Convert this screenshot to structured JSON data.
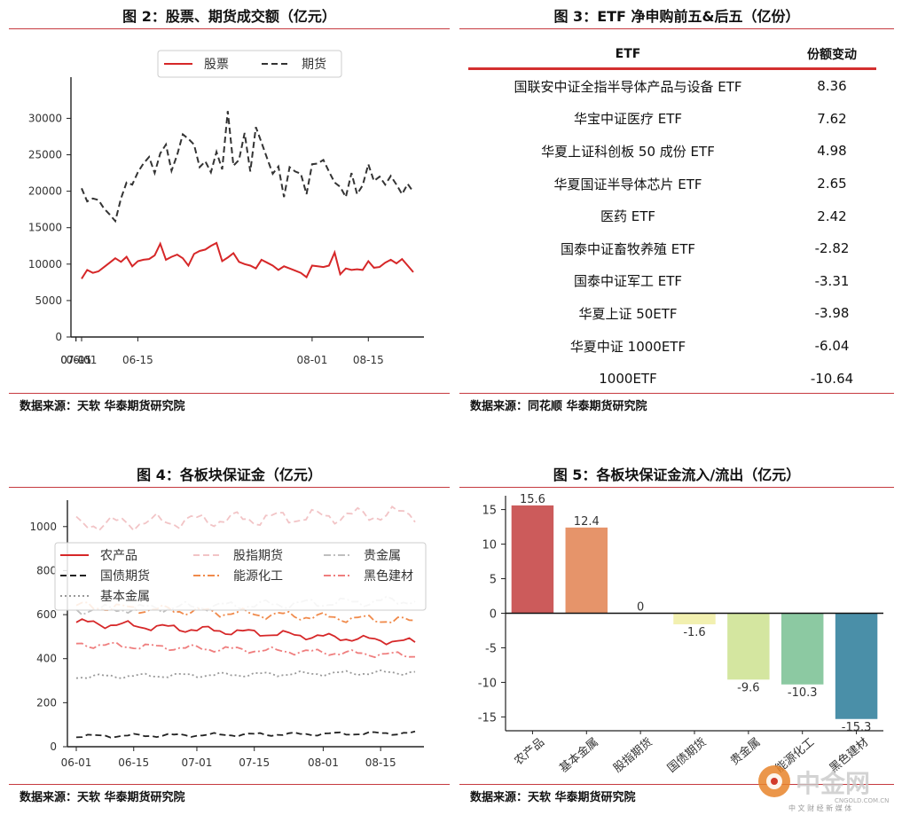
{
  "fig2": {
    "title": "图 2：股票、期货成交额（亿元）",
    "source": "数据来源：天软 华泰期货研究院",
    "legend": [
      "股票",
      "期货"
    ]
  },
  "fig3": {
    "title": "图 3：ETF 净申购前五&后五（亿份）",
    "source": "数据来源：同花顺 华泰期货研究院",
    "header": [
      "ETF",
      "份额变动"
    ],
    "rows": [
      {
        "name": "国联安中证全指半导体产品与设备 ETF",
        "value": "8.36"
      },
      {
        "name": "华宝中证医疗 ETF",
        "value": "7.62"
      },
      {
        "name": "华夏上证科创板 50 成份 ETF",
        "value": "4.98"
      },
      {
        "name": "华夏国证半导体芯片 ETF",
        "value": "2.65"
      },
      {
        "name": "医药 ETF",
        "value": "2.42"
      },
      {
        "name": "国泰中证畜牧养殖 ETF",
        "value": "-2.82"
      },
      {
        "name": "国泰中证军工 ETF",
        "value": "-3.31"
      },
      {
        "name": "华夏上证 50ETF",
        "value": "-3.98"
      },
      {
        "name": "华夏中证 1000ETF",
        "value": "-6.04"
      },
      {
        "name": "1000ETF",
        "value": "-10.64"
      }
    ]
  },
  "fig4": {
    "title": "图 4：各板块保证金（亿元）",
    "source": "数据来源：天软 华泰期货研究院"
  },
  "fig5": {
    "title": "图 5：各板块保证金流入/流出（亿元）",
    "source": "数据来源：天软 华泰期货研究院"
  },
  "watermark": {
    "brand": "中金网",
    "url": "CNGOLD.COM.CN",
    "tag": "中 文 财 经 新 媒 体"
  },
  "chart_data": [
    {
      "type": "line",
      "id": "fig2",
      "x": [
        "06-01",
        "06-02",
        "06-05",
        "06-06",
        "06-07",
        "06-08",
        "06-09",
        "06-12",
        "06-13",
        "06-14",
        "06-15",
        "06-16",
        "06-19",
        "06-20",
        "06-21",
        "06-26",
        "06-27",
        "06-28",
        "06-29",
        "06-30",
        "07-03",
        "07-04",
        "07-05",
        "07-06",
        "07-07",
        "07-10",
        "07-11",
        "07-12",
        "07-13",
        "07-14",
        "07-17",
        "07-18",
        "07-19",
        "07-20",
        "07-21",
        "07-24",
        "07-25",
        "07-26",
        "07-27",
        "07-28",
        "07-31",
        "08-01",
        "08-02",
        "08-03",
        "08-04",
        "08-07",
        "08-08",
        "08-09",
        "08-10",
        "08-11",
        "08-14",
        "08-15",
        "08-16",
        "08-17",
        "08-18",
        "08-21",
        "08-22",
        "08-23",
        "08-24",
        "08-25"
      ],
      "xticks": [
        "06-01",
        "06-15",
        "07-01",
        "07-15",
        "08-01",
        "08-15"
      ],
      "ylim": [
        0,
        32000
      ],
      "yticks": [
        0,
        5000,
        10000,
        15000,
        20000,
        25000,
        30000
      ],
      "legend_position": "top-center",
      "series": [
        {
          "name": "股票",
          "color": "#d62728",
          "style": "solid",
          "values": [
            8000,
            9200,
            8800,
            9000,
            9600,
            10200,
            10800,
            10300,
            11000,
            9700,
            10400,
            10600,
            10700,
            11200,
            12800,
            10600,
            11000,
            11300,
            10800,
            9800,
            11400,
            11800,
            12000,
            12500,
            12900,
            10400,
            10900,
            11500,
            10300,
            10000,
            9800,
            9400,
            10600,
            10200,
            9800,
            9200,
            9700,
            9400,
            9100,
            8800,
            8200,
            9800,
            9700,
            9600,
            9800,
            11600,
            8600,
            9400,
            9200,
            9300,
            9200,
            10400,
            9500,
            9600,
            10200,
            10600,
            10100,
            10700,
            9800,
            8900
          ]
        },
        {
          "name": "期货",
          "color": "#333333",
          "style": "dashed",
          "values": [
            20400,
            18600,
            19000,
            18800,
            17600,
            16800,
            15900,
            19000,
            21200,
            20900,
            22600,
            23800,
            24700,
            22500,
            25200,
            26400,
            22800,
            25000,
            27800,
            27200,
            26400,
            23300,
            24100,
            22600,
            25400,
            23000,
            31000,
            23500,
            24300,
            28000,
            22700,
            28800,
            26700,
            24500,
            22400,
            23400,
            19200,
            23300,
            22700,
            22400,
            19600,
            23700,
            23800,
            24300,
            22700,
            21200,
            20600,
            19200,
            22500,
            19600,
            20800,
            23700,
            21400,
            22000,
            20900,
            22100,
            20900,
            19600,
            21000,
            19900
          ]
        }
      ]
    },
    {
      "type": "line",
      "id": "fig4",
      "x_count": 60,
      "xticks": [
        "06-01",
        "06-15",
        "07-01",
        "07-15",
        "08-01",
        "08-15"
      ],
      "ylim": [
        0,
        1120
      ],
      "yticks": [
        0,
        200,
        400,
        600,
        800,
        1000
      ],
      "legend_position": "upper-center",
      "series": [
        {
          "name": "农产品",
          "color": "#d62728",
          "style": "solid",
          "start": 565,
          "end": 475
        },
        {
          "name": "股指期货",
          "color": "#f2c4c6",
          "style": "dashed",
          "start": 1010,
          "end": 1060
        },
        {
          "name": "贵金属",
          "color": "#bfbfbf",
          "style": "dashdot",
          "start": 620,
          "end": 665
        },
        {
          "name": "国债期货",
          "color": "#222222",
          "style": "dashed",
          "start": 48,
          "end": 62
        },
        {
          "name": "能源化工",
          "color": "#f08a4b",
          "style": "dashdot",
          "start": 640,
          "end": 570
        },
        {
          "name": "黑色建材",
          "color": "#ef7e7e",
          "style": "dashdot",
          "start": 465,
          "end": 415
        },
        {
          "name": "基本金属",
          "color": "#999999",
          "style": "dotted",
          "start": 318,
          "end": 338
        }
      ]
    },
    {
      "type": "bar",
      "id": "fig5",
      "categories": [
        "农产品",
        "基本金属",
        "股指期货",
        "国债期货",
        "贵金属",
        "能源化工",
        "黑色建材"
      ],
      "values": [
        15.6,
        12.4,
        0,
        -1.6,
        -9.6,
        -10.3,
        -15.3
      ],
      "labels": [
        "15.6",
        "12.4",
        "0",
        "-1.6",
        "-9.6",
        "-10.3",
        "-15.3"
      ],
      "colors": [
        "#cc5b5b",
        "#e6946a",
        "#f2c6a8",
        "#f2f0b0",
        "#d4e6a0",
        "#8cc9a2",
        "#4a8fa8"
      ],
      "ylim": [
        -17,
        17
      ],
      "yticks": [
        15,
        10,
        5,
        0,
        -5,
        -10,
        -15
      ]
    }
  ]
}
